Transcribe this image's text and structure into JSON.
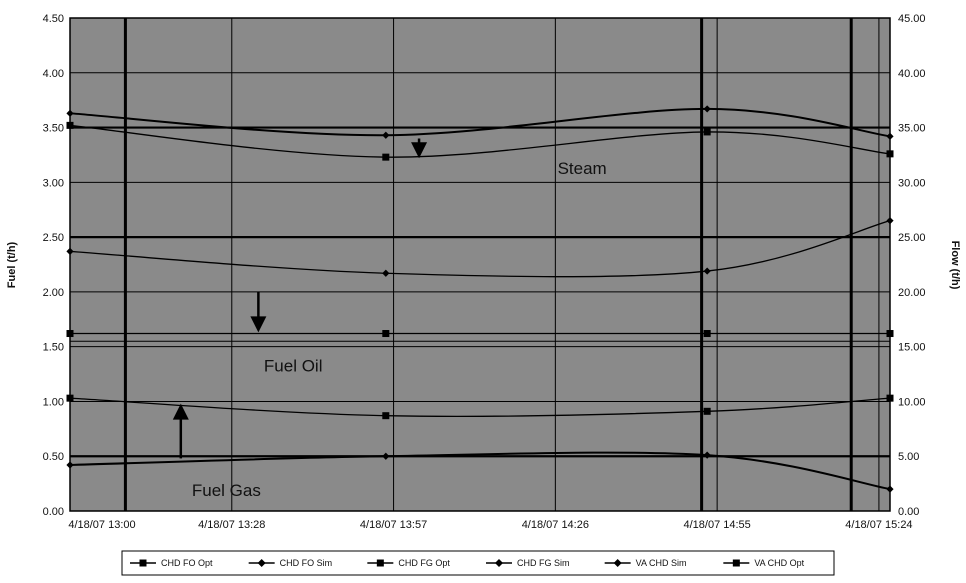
{
  "chart_data": {
    "type": "line",
    "title": "",
    "ylabel": "Fuel (t/h)",
    "y2label": "Flow (t/h)",
    "xlabel": "",
    "x_ticks": [
      "4/18/07 13:00",
      "4/18/07 13:28",
      "4/18/07 13:57",
      "4/18/07 14:26",
      "4/18/07 14:55",
      "4/18/07 15:24"
    ],
    "x_range_minutes": [
      0,
      148
    ],
    "ylim": [
      0,
      4.5
    ],
    "y_ticks": [
      "0.00",
      "0.50",
      "1.00",
      "1.50",
      "2.00",
      "2.50",
      "3.00",
      "3.50",
      "4.00",
      "4.50"
    ],
    "y2lim": [
      0,
      45
    ],
    "y2_ticks": [
      "0.00",
      "5.00",
      "10.00",
      "15.00",
      "20.00",
      "25.00",
      "30.00",
      "35.00",
      "40.00",
      "45.00"
    ],
    "grid": true,
    "background": "#888888",
    "series": [
      {
        "name": "CHD FO Opt",
        "axis": "left",
        "marker": "square",
        "x_minutes": [
          0,
          57,
          115,
          148
        ],
        "values": [
          1.62,
          1.62,
          1.62,
          1.62
        ]
      },
      {
        "name": "CHD FO Sim",
        "axis": "left",
        "marker": "diamond",
        "x_minutes": [
          0,
          57,
          115,
          148
        ],
        "values": [
          2.37,
          2.17,
          2.19,
          2.65
        ]
      },
      {
        "name": "CHD FG Opt",
        "axis": "left",
        "marker": "square",
        "x_minutes": [
          0,
          57,
          115,
          148
        ],
        "values": [
          1.03,
          0.87,
          0.91,
          1.03
        ]
      },
      {
        "name": "CHD FG Sim",
        "axis": "left",
        "marker": "diamond",
        "x_minutes": [
          0,
          57,
          115,
          148
        ],
        "values": [
          0.42,
          0.5,
          0.51,
          0.2
        ]
      },
      {
        "name": "VA CHD Sim",
        "axis": "right",
        "marker": "diamond",
        "x_minutes": [
          0,
          57,
          115,
          148
        ],
        "values": [
          36.3,
          34.3,
          36.7,
          34.2
        ]
      },
      {
        "name": "VA CHD Opt",
        "axis": "right",
        "marker": "square",
        "x_minutes": [
          0,
          57,
          115,
          148
        ],
        "values": [
          35.2,
          32.3,
          34.6,
          32.6
        ]
      }
    ],
    "annotations": [
      {
        "text": "Steam",
        "x_minutes": 88,
        "y": 3.13
      },
      {
        "text": "Fuel Oil",
        "x_minutes": 35,
        "y": 1.33
      },
      {
        "text": "Fuel Gas",
        "x_minutes": 22,
        "y": 0.19
      }
    ],
    "arrows": [
      {
        "x_minutes": 63,
        "from": 3.4,
        "to": 3.22
      },
      {
        "x_minutes": 34,
        "from": 2.0,
        "to": 1.63
      },
      {
        "x_minutes": 20,
        "from": 0.48,
        "to": 0.98
      }
    ],
    "bold_vlines_minutes": [
      10,
      114,
      141
    ],
    "legend_position": "bottom"
  }
}
